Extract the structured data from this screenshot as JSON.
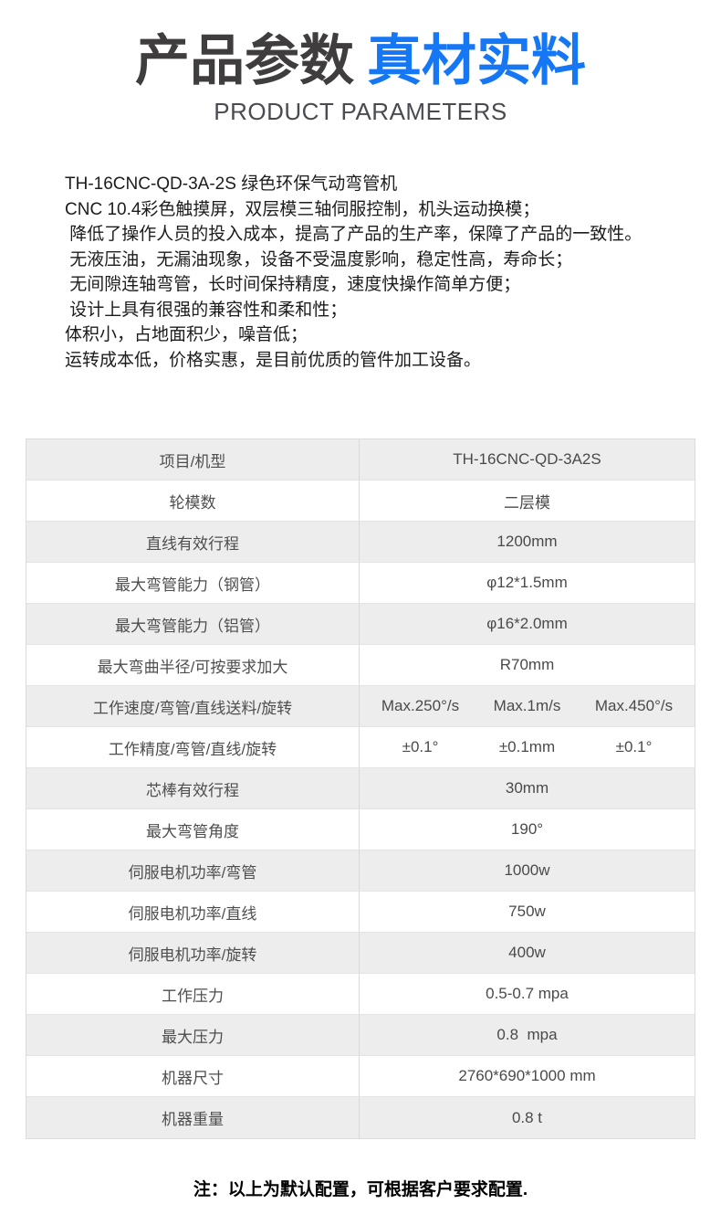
{
  "header": {
    "title_dark": "产品参数",
    "title_blue": "真材实料",
    "subtitle": "PRODUCT PARAMETERS",
    "accent_color": "#1677f5",
    "title_color": "#403d3e"
  },
  "description": {
    "lines": [
      "TH-16CNC-QD-3A-2S 绿色环保气动弯管机",
      "CNC 10.4彩色触摸屏，双层模三轴伺服控制，机头运动换模；",
      " 降低了操作人员的投入成本，提高了产品的生产率，保障了产品的一致性。",
      " 无液压油，无漏油现象，设备不受温度影响，稳定性高，寿命长；",
      " 无间隙连轴弯管，长时间保持精度，速度快操作简单方便；",
      " 设计上具有很强的兼容性和柔和性；",
      "体积小，占地面积少，噪音低；",
      "运转成本低，价格实惠，是目前优质的管件加工设备。"
    ]
  },
  "table": {
    "shaded_row_color": "#ededed",
    "border_color": "#dcdcdc",
    "rows": [
      {
        "label": "项目/机型",
        "value": "TH-16CNC-QD-3A2S"
      },
      {
        "label": "轮模数",
        "value": "二层模"
      },
      {
        "label": "直线有效行程",
        "value": "1200mm"
      },
      {
        "label": "最大弯管能力（钢管）",
        "value": "φ12*1.5mm"
      },
      {
        "label": "最大弯管能力（铝管）",
        "value": "φ16*2.0mm"
      },
      {
        "label": "最大弯曲半径/可按要求加大",
        "value": "R70mm"
      },
      {
        "label": "工作速度/弯管/直线送料/旋转",
        "values": [
          "Max.250°/s",
          "Max.1m/s",
          "Max.450°/s"
        ]
      },
      {
        "label": "工作精度/弯管/直线/旋转",
        "values": [
          "±0.1°",
          "±0.1mm",
          "±0.1°"
        ]
      },
      {
        "label": "芯棒有效行程",
        "value": "30mm"
      },
      {
        "label": "最大弯管角度",
        "value": "190°"
      },
      {
        "label": "伺服电机功率/弯管",
        "value": "1000w"
      },
      {
        "label": "伺服电机功率/直线",
        "value": "750w"
      },
      {
        "label": "伺服电机功率/旋转",
        "value": "400w"
      },
      {
        "label": "工作压力",
        "value": "0.5-0.7 mpa"
      },
      {
        "label": "最大压力",
        "value": "0.8  mpa"
      },
      {
        "label": "机器尺寸",
        "value": "2760*690*1000 mm"
      },
      {
        "label": "机器重量",
        "value": "0.8 t"
      }
    ]
  },
  "footer": {
    "note": "注：以上为默认配置，可根据客户要求配置."
  }
}
